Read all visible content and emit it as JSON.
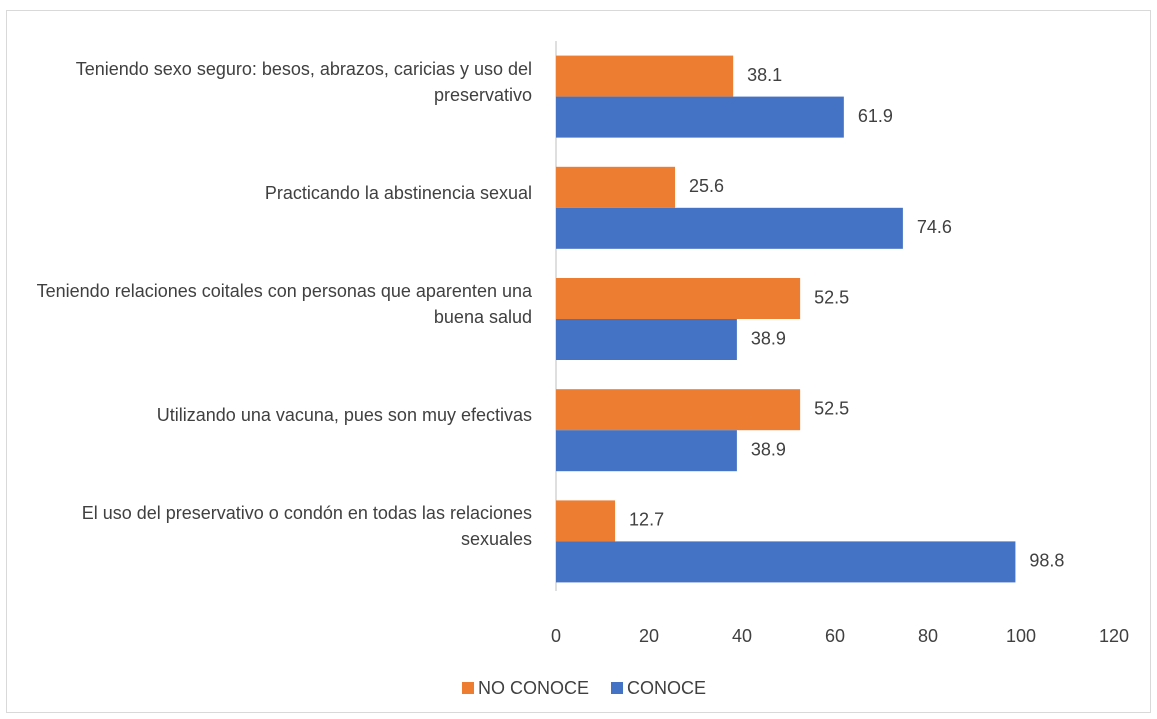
{
  "chart_data": {
    "type": "bar",
    "orientation": "horizontal",
    "categories": [
      "Teniendo sexo seguro: besos, abrazos, caricias y uso del preservativo",
      "Practicando la abstinencia sexual",
      "Teniendo relaciones coitales con personas que aparenten una buena salud",
      "Utilizando una vacuna, pues son muy efectivas",
      "El uso del preservativo o condón en todas las relaciones sexuales"
    ],
    "series": [
      {
        "name": "NO CONOCE",
        "color": "#ed7d31",
        "values": [
          38.1,
          25.6,
          52.5,
          52.5,
          12.7
        ]
      },
      {
        "name": "CONOCE",
        "color": "#4472c4",
        "values": [
          61.9,
          74.6,
          38.9,
          38.9,
          98.8
        ]
      }
    ],
    "xlim": [
      0,
      120
    ],
    "xticks": [
      0,
      20,
      40,
      60,
      80,
      100,
      120
    ],
    "grid": false,
    "legend": "bottom"
  }
}
